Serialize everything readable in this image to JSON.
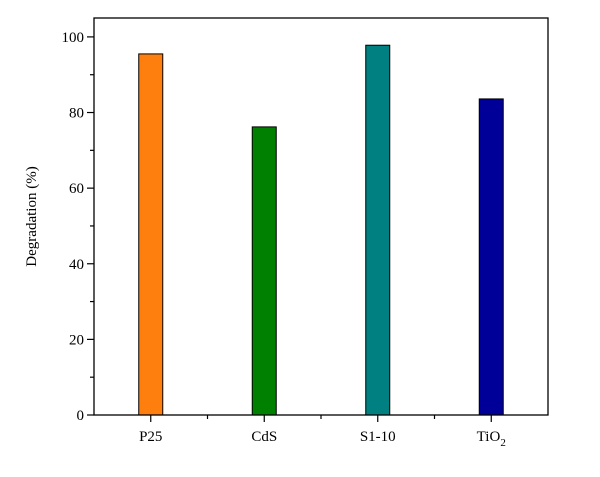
{
  "chart_data": {
    "type": "bar",
    "title": "",
    "xlabel": "",
    "ylabel": "Degradation (%)",
    "categories": [
      "P25",
      "CdS",
      "S1-10",
      "TiO2"
    ],
    "category_labels": [
      {
        "base": "P25",
        "sub": ""
      },
      {
        "base": "CdS",
        "sub": ""
      },
      {
        "base": "S1-10",
        "sub": ""
      },
      {
        "base": "TiO",
        "sub": "2"
      }
    ],
    "values": [
      95.5,
      76.2,
      97.8,
      83.6
    ],
    "bar_colors": [
      "#ff7f0e",
      "#008000",
      "#008080",
      "#000099"
    ],
    "bar_edge_color": "#000000",
    "ylim": [
      0,
      105
    ],
    "yticks": [
      0,
      20,
      40,
      60,
      80,
      100
    ],
    "y_minor_step": 10,
    "grid": false,
    "legend": "none"
  }
}
